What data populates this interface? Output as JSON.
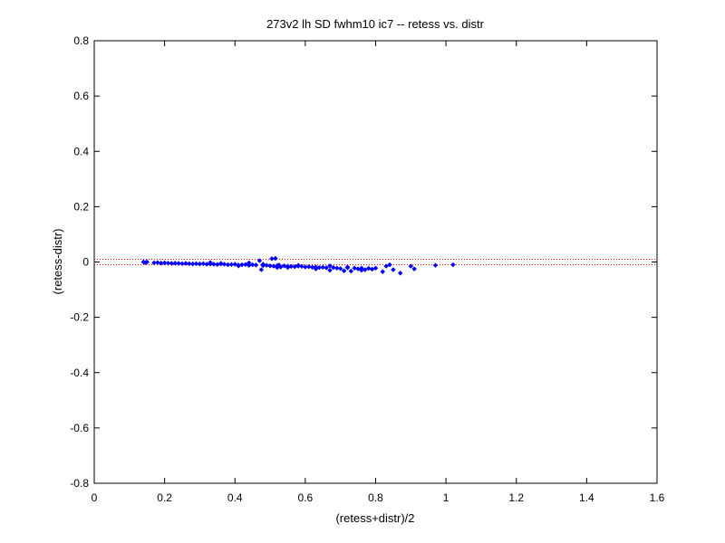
{
  "chart_data": {
    "type": "scatter",
    "title": "273v2 lh SD fwhm10 ic7 -- retess vs. distr",
    "xlabel": "(retess+distr)/2",
    "ylabel": "(retess-distr)",
    "xlim": [
      0,
      1.6
    ],
    "ylim": [
      -0.8,
      0.8
    ],
    "xticks": [
      0,
      0.2,
      0.4,
      0.6,
      0.8,
      1,
      1.2,
      1.4,
      1.6
    ],
    "xtick_labels": [
      "0",
      "0.2",
      "0.4",
      "0.6",
      "0.8",
      "1",
      "1.2",
      "1.4",
      "1.6"
    ],
    "yticks": [
      -0.8,
      -0.6,
      -0.4,
      -0.2,
      0,
      0.2,
      0.4,
      0.6,
      0.8
    ],
    "ytick_labels": [
      "-0.8",
      "-0.6",
      "-0.4",
      "-0.2",
      "0",
      "0.2",
      "0.4",
      "0.6",
      "0.8"
    ],
    "grid": false,
    "marker_color": "#0000ff",
    "reference_lines": {
      "y_values": [
        0.01,
        -0.01
      ],
      "color": "#ff0000",
      "style": "dotted"
    },
    "series": [
      {
        "x": [
          0.14,
          0.145,
          0.15,
          0.17,
          0.18,
          0.19,
          0.2,
          0.21,
          0.22,
          0.23,
          0.24,
          0.25,
          0.26,
          0.27,
          0.28,
          0.29,
          0.3,
          0.31,
          0.32,
          0.33,
          0.34,
          0.35,
          0.36,
          0.37,
          0.38,
          0.39,
          0.4,
          0.41,
          0.42,
          0.43,
          0.44,
          0.45,
          0.46,
          0.47,
          0.475,
          0.48,
          0.49,
          0.5,
          0.505,
          0.51,
          0.515,
          0.52,
          0.525,
          0.53,
          0.54,
          0.55,
          0.56,
          0.57,
          0.58,
          0.59,
          0.6,
          0.61,
          0.62,
          0.63,
          0.64,
          0.65,
          0.66,
          0.67,
          0.68,
          0.69,
          0.7,
          0.71,
          0.72,
          0.73,
          0.74,
          0.75,
          0.76,
          0.77,
          0.78,
          0.79,
          0.8,
          0.82,
          0.83,
          0.84,
          0.85,
          0.87,
          0.9,
          0.91,
          0.97,
          1.02,
          0.36,
          0.44,
          0.48,
          0.52,
          0.58,
          0.63,
          0.67,
          0.72,
          0.76,
          0.33,
          0.41,
          0.55
        ],
        "y": [
          0.0,
          -0.002,
          0.0,
          -0.003,
          -0.002,
          -0.004,
          -0.003,
          -0.004,
          -0.005,
          -0.004,
          -0.005,
          -0.006,
          -0.005,
          -0.006,
          -0.007,
          -0.006,
          -0.007,
          -0.006,
          -0.008,
          -0.007,
          -0.008,
          -0.009,
          -0.007,
          -0.008,
          -0.01,
          -0.009,
          -0.008,
          -0.011,
          -0.01,
          -0.009,
          -0.012,
          -0.01,
          -0.011,
          0.005,
          -0.028,
          -0.013,
          -0.012,
          -0.014,
          0.012,
          -0.015,
          0.013,
          -0.013,
          -0.011,
          -0.018,
          -0.014,
          -0.015,
          -0.016,
          -0.017,
          -0.015,
          -0.016,
          -0.018,
          -0.017,
          -0.019,
          -0.018,
          -0.02,
          -0.019,
          -0.021,
          -0.03,
          -0.02,
          -0.022,
          -0.024,
          -0.032,
          -0.021,
          -0.033,
          -0.022,
          -0.025,
          -0.022,
          -0.028,
          -0.023,
          -0.026,
          -0.022,
          -0.035,
          -0.015,
          -0.01,
          -0.028,
          -0.04,
          -0.015,
          -0.025,
          -0.012,
          -0.01,
          -0.005,
          -0.003,
          -0.008,
          -0.02,
          -0.012,
          -0.025,
          -0.014,
          -0.018,
          -0.03,
          -0.002,
          -0.014,
          -0.02
        ]
      }
    ]
  }
}
